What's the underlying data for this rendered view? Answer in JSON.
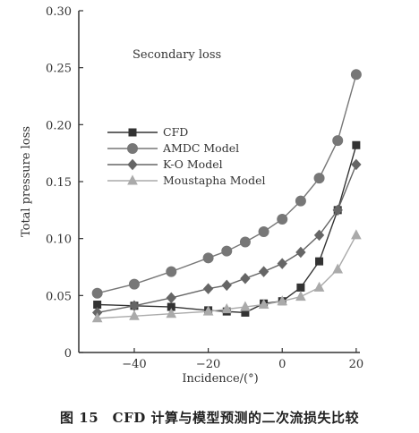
{
  "chart_data": {
    "type": "line",
    "annotation": "Secondary loss",
    "xlabel": "Incidence/(°)",
    "ylabel": "Total pressure loss",
    "xlim": [
      -55,
      21
    ],
    "ylim": [
      0,
      0.3
    ],
    "xticks": [
      -40,
      -20,
      0,
      20
    ],
    "yticks": [
      0,
      0.05,
      0.1,
      0.15,
      0.2,
      0.25,
      0.3
    ],
    "ytick_labels": [
      "0",
      "0.05",
      "0.10",
      "0.15",
      "0.20",
      "0.25",
      "0.30"
    ],
    "legend_position": "upper-left",
    "series": [
      {
        "name": "CFD",
        "marker": "square",
        "color": "#333333",
        "x": [
          -50,
          -40,
          -30,
          -20,
          -15,
          -10,
          -5,
          0,
          5,
          10,
          15,
          20
        ],
        "y": [
          0.042,
          0.041,
          0.04,
          0.037,
          0.036,
          0.035,
          0.043,
          0.045,
          0.057,
          0.08,
          0.125,
          0.182
        ]
      },
      {
        "name": "AMDC Model",
        "marker": "circle",
        "color": "#777777",
        "x": [
          -50,
          -40,
          -30,
          -20,
          -15,
          -10,
          -5,
          0,
          5,
          10,
          15,
          20
        ],
        "y": [
          0.052,
          0.06,
          0.071,
          0.083,
          0.089,
          0.097,
          0.106,
          0.117,
          0.133,
          0.153,
          0.186,
          0.244
        ]
      },
      {
        "name": "K-O Model",
        "marker": "diamond",
        "color": "#666666",
        "x": [
          -50,
          -40,
          -30,
          -20,
          -15,
          -10,
          -5,
          0,
          5,
          10,
          15,
          20
        ],
        "y": [
          0.035,
          0.041,
          0.048,
          0.056,
          0.059,
          0.065,
          0.071,
          0.078,
          0.088,
          0.103,
          0.125,
          0.165
        ]
      },
      {
        "name": "Moustapha Model",
        "marker": "triangle",
        "color": "#aaaaaa",
        "x": [
          -50,
          -40,
          -30,
          -20,
          -15,
          -10,
          -5,
          0,
          5,
          10,
          15,
          20
        ],
        "y": [
          0.03,
          0.032,
          0.034,
          0.036,
          0.038,
          0.04,
          0.042,
          0.045,
          0.049,
          0.057,
          0.073,
          0.103
        ]
      }
    ]
  },
  "caption": "图 15　CFD 计算与模型预测的二次流损失比较"
}
